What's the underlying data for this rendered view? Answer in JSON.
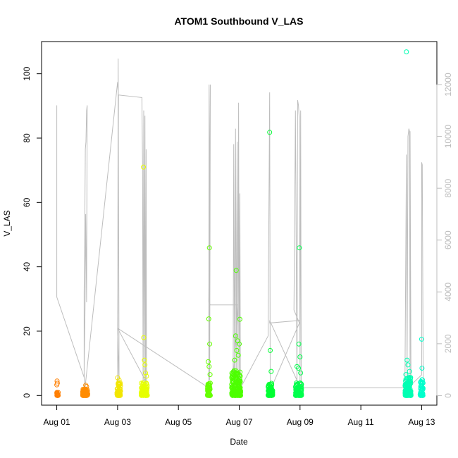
{
  "chart_data": {
    "type": "scatter",
    "title": "ATOM1 Southbound V_LAS",
    "xlabel": "Date",
    "ylabel": "V_LAS",
    "x_domain": [
      "2023-08-01",
      "2023-08-13T08:00"
    ],
    "xlim": [
      -0.5,
      12.5
    ],
    "ylim": [
      -3,
      110
    ],
    "x_ticks": [
      {
        "x": 0,
        "label": "Aug 01"
      },
      {
        "x": 2,
        "label": "Aug 03"
      },
      {
        "x": 4,
        "label": "Aug 05"
      },
      {
        "x": 6,
        "label": "Aug 07"
      },
      {
        "x": 8,
        "label": "Aug 09"
      },
      {
        "x": 10,
        "label": "Aug 11"
      },
      {
        "x": 12,
        "label": "Aug 13"
      }
    ],
    "y_ticks": [
      0,
      20,
      40,
      60,
      80,
      100
    ],
    "y2_ticks": [
      0,
      2000,
      4000,
      6000,
      8000,
      10000,
      12000
    ],
    "y2lim": [
      -370,
      13660
    ],
    "grid": false,
    "scatter_groups": [
      {
        "date": "Aug 01",
        "x_range": [
          0.0,
          0.05
        ],
        "color": "#FF7F00",
        "base_max": 1.0,
        "outliers": [
          [
            0.01,
            4.5
          ],
          [
            0.02,
            3.8
          ],
          [
            0.0,
            3.3
          ]
        ]
      },
      {
        "date": "Aug 01",
        "x_range": [
          0.85,
          1.02
        ],
        "color": "#FF8C00",
        "base_max": 2.0,
        "outliers": [
          [
            0.95,
            3.2
          ],
          [
            0.98,
            2.8
          ]
        ]
      },
      {
        "date": "Aug 03",
        "x_range": [
          1.98,
          2.1
        ],
        "color": "#F2E600",
        "base_max": 4.0,
        "outliers": [
          [
            2.0,
            5.5
          ],
          [
            2.05,
            4.8
          ]
        ]
      },
      {
        "date": "Aug 03",
        "x_range": [
          2.78,
          2.98
        ],
        "color": "#E6FF00",
        "base_max": 4.0,
        "outliers": [
          [
            2.85,
            71.0
          ],
          [
            2.86,
            18.0
          ],
          [
            2.88,
            11.0
          ],
          [
            2.9,
            9.5
          ],
          [
            2.92,
            7.0
          ],
          [
            2.95,
            6.0
          ]
        ]
      },
      {
        "date": "Aug 06",
        "x_range": [
          4.95,
          5.05
        ],
        "color": "#66FF00",
        "base_max": 4.0,
        "outliers": [
          [
            5.02,
            45.9
          ],
          [
            5.0,
            23.8
          ],
          [
            5.03,
            16.0
          ],
          [
            4.98,
            10.5
          ],
          [
            5.01,
            9.0
          ],
          [
            5.04,
            6.5
          ]
        ]
      },
      {
        "date": "Aug 07",
        "x_range": [
          5.75,
          6.05
        ],
        "color": "#4DFF00",
        "base_max": 8.0,
        "outliers": [
          [
            5.9,
            38.9
          ],
          [
            6.02,
            23.7
          ],
          [
            5.88,
            18.5
          ],
          [
            5.95,
            17.0
          ],
          [
            6.0,
            16.0
          ],
          [
            5.92,
            14.0
          ],
          [
            5.97,
            12.5
          ],
          [
            5.85,
            11.0
          ]
        ]
      },
      {
        "date": "Aug 08",
        "x_range": [
          6.95,
          7.1
        ],
        "color": "#00FF33",
        "base_max": 4.0,
        "outliers": [
          [
            7.0,
            81.8
          ],
          [
            7.02,
            14.0
          ],
          [
            7.05,
            7.5
          ]
        ]
      },
      {
        "date": "Aug 09",
        "x_range": [
          7.85,
          8.05
        ],
        "color": "#00FF4D",
        "base_max": 4.0,
        "outliers": [
          [
            7.98,
            45.9
          ],
          [
            7.96,
            16.0
          ],
          [
            8.0,
            12.0
          ],
          [
            7.9,
            9.0
          ],
          [
            7.95,
            8.5
          ],
          [
            8.02,
            7.0
          ]
        ]
      },
      {
        "date": "Aug 12",
        "x_range": [
          11.45,
          11.65
        ],
        "color": "#00FFB3",
        "base_max": 6.0,
        "outliers": [
          [
            11.5,
            106.8
          ],
          [
            11.52,
            11.0
          ],
          [
            11.55,
            9.5
          ],
          [
            11.6,
            7.5
          ],
          [
            11.48,
            6.5
          ]
        ]
      },
      {
        "date": "Aug 13",
        "x_range": [
          11.95,
          12.05
        ],
        "color": "#00FFCC",
        "base_max": 5.0,
        "outliers": [
          [
            12.0,
            17.5
          ],
          [
            12.01,
            8.5
          ]
        ]
      }
    ],
    "line_series": {
      "axis": "right",
      "color": "#bdbdbd",
      "points": [
        [
          0.0,
          11200
        ],
        [
          0.0,
          3800
        ],
        [
          0.9,
          700
        ],
        [
          0.9,
          4000
        ],
        [
          0.92,
          6500
        ],
        [
          0.94,
          9500
        ],
        [
          0.96,
          9800
        ],
        [
          0.98,
          11000
        ],
        [
          1.0,
          11200
        ],
        [
          0.98,
          3600
        ],
        [
          0.95,
          7000
        ],
        [
          0.93,
          3400
        ],
        [
          0.9,
          900
        ],
        [
          0.92,
          200
        ],
        [
          2.0,
          12100
        ],
        [
          2.02,
          11700
        ],
        [
          2.0,
          200
        ],
        [
          2.02,
          13000
        ],
        [
          2.05,
          500
        ],
        [
          2.0,
          2400
        ],
        [
          2.03,
          11600
        ],
        [
          2.8,
          11500
        ],
        [
          2.82,
          9000
        ],
        [
          2.84,
          500
        ],
        [
          2.86,
          11000
        ],
        [
          2.88,
          200
        ],
        [
          2.9,
          10800
        ],
        [
          2.92,
          200
        ],
        [
          2.94,
          9500
        ],
        [
          2.95,
          500
        ],
        [
          2.0,
          2600
        ],
        [
          5.0,
          300
        ],
        [
          5.01,
          12000
        ],
        [
          5.03,
          600
        ],
        [
          5.05,
          12000
        ],
        [
          5.0,
          3600
        ],
        [
          5.05,
          3500
        ],
        [
          5.95,
          3500
        ],
        [
          5.8,
          600
        ],
        [
          5.82,
          9700
        ],
        [
          5.85,
          500
        ],
        [
          5.88,
          10300
        ],
        [
          5.9,
          400
        ],
        [
          5.93,
          9800
        ],
        [
          5.96,
          600
        ],
        [
          5.98,
          11300
        ],
        [
          6.0,
          400
        ],
        [
          6.02,
          7800
        ],
        [
          6.04,
          300
        ],
        [
          6.0,
          200
        ],
        [
          6.95,
          2300
        ],
        [
          7.0,
          11700
        ],
        [
          7.02,
          200
        ],
        [
          7.98,
          2800
        ],
        [
          7.8,
          3300
        ],
        [
          7.85,
          11000
        ],
        [
          7.9,
          200
        ],
        [
          7.92,
          11400
        ],
        [
          7.95,
          11200
        ],
        [
          7.98,
          10600
        ],
        [
          8.0,
          200
        ],
        [
          8.02,
          11000
        ],
        [
          8.04,
          300
        ],
        [
          8.05,
          200
        ],
        [
          7.0,
          2900
        ],
        [
          7.0,
          2800
        ],
        [
          8.0,
          2900
        ],
        [
          8.0,
          300
        ],
        [
          11.5,
          300
        ],
        [
          11.45,
          400
        ],
        [
          11.5,
          9300
        ],
        [
          11.52,
          500
        ],
        [
          11.55,
          10000
        ],
        [
          11.58,
          10300
        ],
        [
          11.6,
          10200
        ],
        [
          11.62,
          300
        ],
        [
          11.62,
          10200
        ],
        [
          11.65,
          300
        ],
        [
          11.55,
          300
        ],
        [
          12.0,
          800
        ],
        [
          12.0,
          9000
        ],
        [
          12.02,
          8900
        ],
        [
          12.05,
          300
        ]
      ]
    }
  }
}
